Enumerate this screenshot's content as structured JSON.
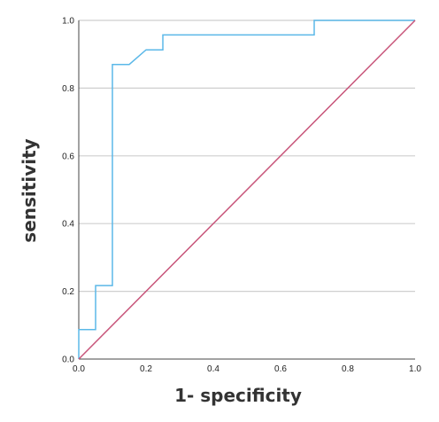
{
  "chart_data": {
    "type": "line",
    "title": "",
    "xlabel": "1- specificity",
    "ylabel": "sensitivity",
    "xlim": [
      0,
      1
    ],
    "ylim": [
      0,
      1
    ],
    "x_ticks": [
      "0.0",
      "0.2",
      "0.4",
      "0.6",
      "0.8",
      "1.0"
    ],
    "y_ticks": [
      "0.0",
      "0.2",
      "0.4",
      "0.6",
      "0.8",
      "1.0"
    ],
    "grid": "horizontal",
    "legend": "none",
    "series": [
      {
        "color": "#5bb8e8",
        "x": [
          0,
          0,
          0.05,
          0.05,
          0.1,
          0.1,
          0.15,
          0.2,
          0.25,
          0.25,
          0.7,
          0.7,
          1.0
        ],
        "y": [
          0,
          0.087,
          0.087,
          0.217,
          0.217,
          0.87,
          0.87,
          0.913,
          0.913,
          0.957,
          0.957,
          1.0,
          1.0
        ]
      },
      {
        "color": "#c8557a",
        "x": [
          0,
          1
        ],
        "y": [
          0,
          1
        ]
      }
    ]
  }
}
